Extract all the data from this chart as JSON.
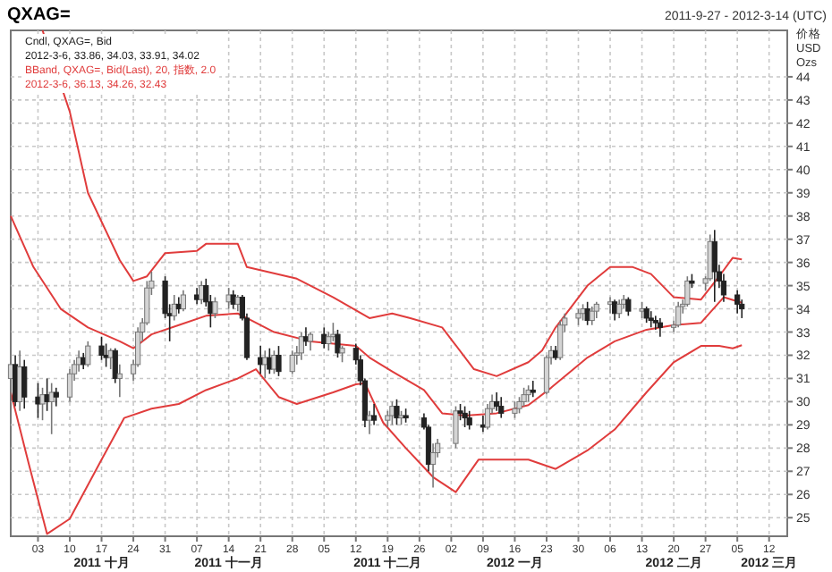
{
  "chart_data": {
    "type": "candlestick",
    "title": "QXAG=",
    "subtitle": "2011-9-27 - 2012-3-14 (UTC)",
    "ylabel": "价格 USD Ozs",
    "x": [
      "2011-09-27",
      "2011-09-28",
      "2011-09-29",
      "2011-09-30",
      "2011-10-03",
      "2011-10-04",
      "2011-10-05",
      "2011-10-06",
      "2011-10-07",
      "2011-10-10",
      "2011-10-11",
      "2011-10-12",
      "2011-10-13",
      "2011-10-14",
      "2011-10-17",
      "2011-10-18",
      "2011-10-19",
      "2011-10-20",
      "2011-10-21",
      "2011-10-24",
      "2011-10-25",
      "2011-10-26",
      "2011-10-27",
      "2011-10-28",
      "2011-10-31",
      "2011-11-01",
      "2011-11-02",
      "2011-11-03",
      "2011-11-04",
      "2011-11-07",
      "2011-11-08",
      "2011-11-09",
      "2011-11-10",
      "2011-11-11",
      "2011-11-14",
      "2011-11-15",
      "2011-11-16",
      "2011-11-17",
      "2011-11-18",
      "2011-11-21",
      "2011-11-22",
      "2011-11-23",
      "2011-11-24",
      "2011-11-25",
      "2011-11-28",
      "2011-11-29",
      "2011-11-30",
      "2011-12-01",
      "2011-12-02",
      "2011-12-05",
      "2011-12-06",
      "2011-12-07",
      "2011-12-08",
      "2011-12-09",
      "2011-12-12",
      "2011-12-13",
      "2011-12-14",
      "2011-12-15",
      "2011-12-16",
      "2011-12-19",
      "2011-12-20",
      "2011-12-21",
      "2011-12-22",
      "2011-12-23",
      "2011-12-27",
      "2011-12-28",
      "2011-12-29",
      "2011-12-30",
      "2012-01-03",
      "2012-01-04",
      "2012-01-05",
      "2012-01-06",
      "2012-01-09",
      "2012-01-10",
      "2012-01-11",
      "2012-01-12",
      "2012-01-13",
      "2012-01-16",
      "2012-01-17",
      "2012-01-18",
      "2012-01-19",
      "2012-01-20",
      "2012-01-23",
      "2012-01-24",
      "2012-01-25",
      "2012-01-26",
      "2012-01-27",
      "2012-01-30",
      "2012-01-31",
      "2012-02-01",
      "2012-02-02",
      "2012-02-03",
      "2012-02-06",
      "2012-02-07",
      "2012-02-08",
      "2012-02-09",
      "2012-02-10",
      "2012-02-13",
      "2012-02-14",
      "2012-02-15",
      "2012-02-16",
      "2012-02-17",
      "2012-02-20",
      "2012-02-21",
      "2012-02-22",
      "2012-02-23",
      "2012-02-24",
      "2012-02-27",
      "2012-02-28",
      "2012-02-29",
      "2012-03-01",
      "2012-03-02",
      "2012-03-05",
      "2012-03-06"
    ],
    "ohlc": [
      [
        31.0,
        33.0,
        30.0,
        31.6
      ],
      [
        31.6,
        32.0,
        29.8,
        30.0
      ],
      [
        30.0,
        32.2,
        29.6,
        31.5
      ],
      [
        31.5,
        31.8,
        29.7,
        30.2
      ],
      [
        30.2,
        30.8,
        29.3,
        29.9
      ],
      [
        29.9,
        30.6,
        29.2,
        30.3
      ],
      [
        30.3,
        31.0,
        29.6,
        30.0
      ],
      [
        30.0,
        30.8,
        28.6,
        30.4
      ],
      [
        30.4,
        30.6,
        29.8,
        30.2
      ],
      [
        30.2,
        31.4,
        30.0,
        31.2
      ],
      [
        31.2,
        31.8,
        30.9,
        31.6
      ],
      [
        31.6,
        32.2,
        31.3,
        31.9
      ],
      [
        31.9,
        32.1,
        31.4,
        31.6
      ],
      [
        31.6,
        32.6,
        31.5,
        32.4
      ],
      [
        32.4,
        32.8,
        31.8,
        32.0
      ],
      [
        32.0,
        32.5,
        31.5,
        31.9
      ],
      [
        31.9,
        32.3,
        31.4,
        32.2
      ],
      [
        32.2,
        32.3,
        30.8,
        31.0
      ],
      [
        31.0,
        31.6,
        30.2,
        31.2
      ],
      [
        31.2,
        31.8,
        30.9,
        31.6
      ],
      [
        31.6,
        33.2,
        31.5,
        33.0
      ],
      [
        33.0,
        33.6,
        32.6,
        33.4
      ],
      [
        33.4,
        35.2,
        33.3,
        34.9
      ],
      [
        34.9,
        35.6,
        34.6,
        35.2
      ],
      [
        35.2,
        35.4,
        33.6,
        33.8
      ],
      [
        33.8,
        34.2,
        32.6,
        33.7
      ],
      [
        33.7,
        34.6,
        33.5,
        34.2
      ],
      [
        34.2,
        34.5,
        33.8,
        34.0
      ],
      [
        34.0,
        34.8,
        33.9,
        34.6
      ],
      [
        34.6,
        34.9,
        34.2,
        34.4
      ],
      [
        34.4,
        35.2,
        34.2,
        35.0
      ],
      [
        35.0,
        35.3,
        34.1,
        34.3
      ],
      [
        34.3,
        34.6,
        33.2,
        33.8
      ],
      [
        33.8,
        34.5,
        33.6,
        34.3
      ],
      [
        34.3,
        34.9,
        34.0,
        34.6
      ],
      [
        34.6,
        34.8,
        34.0,
        34.2
      ],
      [
        34.2,
        34.6,
        33.9,
        34.5
      ],
      [
        34.5,
        34.6,
        33.5,
        33.6
      ],
      [
        33.6,
        33.8,
        31.8,
        31.9
      ],
      [
        31.9,
        32.4,
        31.2,
        31.6
      ],
      [
        31.6,
        32.2,
        31.0,
        31.9
      ],
      [
        31.9,
        32.3,
        31.2,
        31.4
      ],
      [
        31.4,
        32.2,
        31.2,
        32.0
      ],
      [
        32.0,
        32.4,
        31.1,
        31.3
      ],
      [
        31.3,
        32.2,
        31.2,
        32.0
      ],
      [
        32.0,
        32.4,
        31.6,
        32.1
      ],
      [
        32.1,
        33.0,
        31.8,
        32.8
      ],
      [
        32.8,
        33.2,
        32.4,
        32.6
      ],
      [
        32.6,
        33.0,
        32.2,
        32.9
      ],
      [
        32.9,
        33.2,
        32.3,
        32.5
      ],
      [
        32.5,
        33.0,
        32.2,
        32.8
      ],
      [
        32.8,
        33.4,
        32.6,
        32.9
      ],
      [
        32.9,
        33.1,
        31.9,
        32.1
      ],
      [
        32.1,
        32.4,
        31.7,
        32.3
      ],
      [
        32.3,
        32.5,
        31.6,
        31.8
      ],
      [
        31.8,
        32.0,
        30.7,
        30.9
      ],
      [
        30.9,
        31.0,
        28.9,
        29.2
      ],
      [
        29.2,
        29.6,
        28.6,
        29.4
      ],
      [
        29.4,
        29.9,
        29.0,
        29.2
      ],
      [
        29.2,
        29.6,
        28.9,
        29.4
      ],
      [
        29.4,
        30.0,
        29.0,
        29.8
      ],
      [
        29.8,
        30.1,
        29.0,
        29.3
      ],
      [
        29.3,
        29.6,
        29.0,
        29.4
      ],
      [
        29.4,
        29.7,
        29.1,
        29.3
      ],
      [
        29.3,
        29.5,
        28.8,
        28.9
      ],
      [
        28.9,
        29.0,
        27.0,
        27.3
      ],
      [
        27.3,
        28.2,
        26.3,
        27.8
      ],
      [
        27.8,
        28.4,
        27.6,
        28.2
      ],
      [
        28.2,
        29.8,
        28.0,
        29.6
      ],
      [
        29.6,
        29.9,
        29.2,
        29.5
      ],
      [
        29.5,
        29.8,
        28.9,
        29.3
      ],
      [
        29.3,
        29.6,
        28.8,
        29.0
      ],
      [
        29.0,
        29.4,
        28.7,
        28.9
      ],
      [
        28.9,
        29.9,
        28.8,
        29.7
      ],
      [
        29.7,
        30.3,
        29.5,
        30.0
      ],
      [
        30.0,
        30.4,
        29.6,
        29.8
      ],
      [
        29.8,
        30.2,
        29.3,
        29.5
      ],
      [
        29.5,
        30.0,
        29.3,
        29.7
      ],
      [
        29.7,
        30.2,
        29.5,
        30.0
      ],
      [
        30.0,
        30.6,
        29.8,
        30.3
      ],
      [
        30.3,
        30.7,
        30.0,
        30.5
      ],
      [
        30.5,
        30.9,
        30.2,
        30.4
      ],
      [
        30.4,
        32.0,
        30.3,
        31.9
      ],
      [
        31.9,
        32.4,
        31.6,
        32.2
      ],
      [
        32.2,
        32.4,
        31.8,
        31.9
      ],
      [
        31.9,
        33.5,
        31.8,
        33.3
      ],
      [
        33.3,
        33.8,
        33.0,
        33.6
      ],
      [
        33.6,
        34.0,
        33.3,
        33.8
      ],
      [
        33.8,
        34.2,
        33.5,
        34.0
      ],
      [
        34.0,
        34.3,
        33.3,
        33.5
      ],
      [
        33.5,
        34.1,
        33.3,
        33.9
      ],
      [
        33.9,
        34.3,
        33.6,
        34.2
      ],
      [
        34.2,
        34.5,
        33.8,
        34.3
      ],
      [
        34.3,
        34.4,
        33.5,
        33.8
      ],
      [
        33.8,
        34.4,
        33.6,
        34.2
      ],
      [
        34.2,
        34.6,
        34.0,
        34.4
      ],
      [
        34.4,
        34.5,
        33.7,
        33.9
      ],
      [
        33.9,
        34.3,
        33.6,
        34.0
      ],
      [
        34.0,
        34.1,
        33.4,
        33.6
      ],
      [
        33.6,
        33.9,
        33.2,
        33.5
      ],
      [
        33.5,
        33.7,
        33.1,
        33.4
      ],
      [
        33.4,
        33.6,
        32.8,
        33.2
      ],
      [
        33.2,
        33.5,
        33.0,
        33.3
      ],
      [
        33.3,
        34.3,
        33.2,
        34.1
      ],
      [
        34.1,
        34.4,
        33.8,
        34.2
      ],
      [
        34.2,
        35.4,
        34.1,
        35.2
      ],
      [
        35.2,
        35.5,
        34.9,
        35.1
      ],
      [
        35.1,
        35.4,
        34.8,
        35.3
      ],
      [
        35.3,
        37.2,
        35.2,
        36.9
      ],
      [
        36.9,
        37.4,
        34.3,
        35.6
      ],
      [
        35.6,
        35.9,
        34.9,
        35.2
      ],
      [
        35.2,
        35.5,
        34.3,
        34.6
      ],
      [
        34.6,
        34.8,
        33.8,
        34.2
      ],
      [
        34.2,
        34.4,
        33.6,
        34.0
      ]
    ],
    "series": [
      {
        "type": "line",
        "name": "BBand, QXAG=, Bid(Last), 20, 指数, 2.0",
        "color": "#e03c3c",
        "x": [
          "2011-10-04",
          "2011-10-10",
          "2011-10-14",
          "2011-10-21",
          "2011-10-24",
          "2011-10-27",
          "2011-10-31",
          "2011-11-07",
          "2011-11-09",
          "2011-11-16",
          "2011-11-18",
          "2011-11-29",
          "2011-12-07",
          "2011-12-15",
          "2011-12-20",
          "2011-12-24",
          "2011-12-31",
          "2012-01-07",
          "2012-01-12",
          "2012-01-19",
          "2012-01-22",
          "2012-01-25",
          "2012-02-01",
          "2012-02-06",
          "2012-02-11",
          "2012-02-15",
          "2012-02-20",
          "2012-02-26",
          "2012-03-01",
          "2012-03-04",
          "2012-03-06"
        ],
        "values": [
          46.0,
          42.5,
          39.0,
          36.1,
          35.2,
          35.4,
          36.4,
          36.5,
          36.8,
          36.8,
          35.8,
          35.3,
          34.5,
          33.6,
          33.8,
          33.6,
          33.2,
          31.4,
          31.1,
          31.7,
          32.2,
          33.2,
          35.0,
          35.8,
          35.8,
          35.5,
          34.5,
          34.4,
          35.4,
          36.2,
          36.13
        ]
      },
      {
        "type": "line",
        "color": "#e03c3c",
        "x": [
          "2011-09-27",
          "2011-10-02",
          "2011-10-08",
          "2011-10-14",
          "2011-10-21",
          "2011-10-24",
          "2011-10-28",
          "2011-11-03",
          "2011-11-09",
          "2011-11-16",
          "2011-11-18",
          "2011-11-24",
          "2011-12-02",
          "2011-12-07",
          "2011-12-12",
          "2011-12-15",
          "2011-12-20",
          "2011-12-27",
          "2011-12-31",
          "2012-01-05",
          "2012-01-12",
          "2012-01-19",
          "2012-01-24",
          "2012-02-01",
          "2012-02-07",
          "2012-02-14",
          "2012-02-20",
          "2012-02-26",
          "2012-03-02",
          "2012-03-06"
        ],
        "values": [
          38.0,
          35.8,
          34.0,
          33.2,
          32.6,
          32.3,
          32.9,
          33.3,
          33.7,
          33.8,
          33.6,
          33.0,
          32.6,
          32.5,
          32.4,
          31.9,
          31.3,
          30.5,
          29.5,
          29.4,
          29.5,
          29.85,
          30.6,
          31.9,
          32.6,
          33.1,
          33.3,
          33.4,
          34.5,
          34.26
        ]
      },
      {
        "type": "line",
        "color": "#e03c3c",
        "x": [
          "2011-09-27",
          "2011-10-01",
          "2011-10-05",
          "2011-10-10",
          "2011-10-17",
          "2011-10-22",
          "2011-10-28",
          "2011-11-03",
          "2011-11-09",
          "2011-11-16",
          "2011-11-20",
          "2011-11-25",
          "2011-11-29",
          "2011-12-07",
          "2011-12-12",
          "2011-12-14",
          "2011-12-18",
          "2011-12-23",
          "2011-12-29",
          "2012-01-03",
          "2012-01-08",
          "2012-01-19",
          "2012-01-25",
          "2012-02-01",
          "2012-02-07",
          "2012-02-14",
          "2012-02-20",
          "2012-02-26",
          "2012-03-01",
          "2012-03-04",
          "2012-03-06"
        ],
        "values": [
          30.4,
          27.3,
          24.3,
          24.95,
          27.5,
          29.3,
          29.7,
          29.9,
          30.5,
          31.0,
          31.4,
          30.2,
          29.9,
          30.4,
          30.75,
          30.8,
          29.1,
          28.0,
          26.75,
          26.1,
          27.5,
          27.5,
          27.1,
          27.9,
          28.8,
          30.4,
          31.7,
          32.4,
          32.4,
          32.3,
          32.43
        ]
      }
    ],
    "annotations": [
      "Cndl, QXAG=, Bid",
      "2012-3-6, 33.86, 34.03, 33.91, 34.02",
      "2012-3-6, 36.13, 34.26, 32.43"
    ],
    "xlim": [
      "2011-09-27",
      "2012-03-16"
    ],
    "xticks": [
      {
        "value": "2011-10-03",
        "label": "03"
      },
      {
        "value": "2011-10-10",
        "label": "10"
      },
      {
        "value": "2011-10-17",
        "label": "17\n2011 十月"
      },
      {
        "value": "2011-10-24",
        "label": "24"
      },
      {
        "value": "2011-10-31",
        "label": "31"
      },
      {
        "value": "2011-11-07",
        "label": "07"
      },
      {
        "value": "2011-11-14",
        "label": "14\n2011 十一月"
      },
      {
        "value": "2011-11-21",
        "label": "21"
      },
      {
        "value": "2011-11-28",
        "label": "28"
      },
      {
        "value": "2011-12-05",
        "label": "05"
      },
      {
        "value": "2011-12-12",
        "label": "12"
      },
      {
        "value": "2011-12-19",
        "label": "19\n2011 十二月"
      },
      {
        "value": "2011-12-26",
        "label": "26"
      },
      {
        "value": "2012-01-02",
        "label": "02"
      },
      {
        "value": "2012-01-09",
        "label": "09"
      },
      {
        "value": "2012-01-16",
        "label": "16\n2012 一月"
      },
      {
        "value": "2012-01-23",
        "label": "23"
      },
      {
        "value": "2012-01-30",
        "label": "30"
      },
      {
        "value": "2012-02-06",
        "label": "06"
      },
      {
        "value": "2012-02-13",
        "label": "13"
      },
      {
        "value": "2012-02-20",
        "label": "20\n2012 二月"
      },
      {
        "value": "2012-02-27",
        "label": "27"
      },
      {
        "value": "2012-03-05",
        "label": "05"
      },
      {
        "value": "2012-03-12",
        "label": "12\n2012 三月"
      }
    ],
    "ylim": [
      24.2,
      46
    ],
    "yticks": [
      25,
      26,
      27,
      28,
      29,
      30,
      31,
      32,
      33,
      34,
      35,
      36,
      37,
      38,
      39,
      40,
      41,
      42,
      43,
      44
    ],
    "grid": true
  }
}
